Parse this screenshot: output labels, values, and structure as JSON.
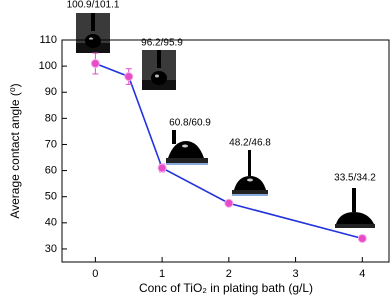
{
  "chart_data": {
    "type": "line",
    "x_label": "Conc of TiO₂ in plating bath (g/L)",
    "y_label": "Average contact angle (⁰)",
    "x": [
      0,
      0.5,
      1,
      2,
      4
    ],
    "series": [
      {
        "color": "#2233dd",
        "marker_color": "#e64bc8",
        "values": [
          101,
          96,
          61,
          47.5,
          34
        ],
        "errors": [
          4,
          3,
          1.5,
          1,
          1
        ]
      }
    ],
    "annotations": [
      "100.9/101.1",
      "96.2/95.9",
      "60.8/60.9",
      "48.2/46.8",
      "33.5/34.2"
    ],
    "xlim": [
      -0.5,
      4.4
    ],
    "xticks": [
      0,
      1,
      2,
      3,
      4
    ],
    "ylim": [
      25,
      110
    ],
    "yticks": [
      30,
      40,
      50,
      60,
      70,
      80,
      90,
      100,
      110
    ]
  }
}
